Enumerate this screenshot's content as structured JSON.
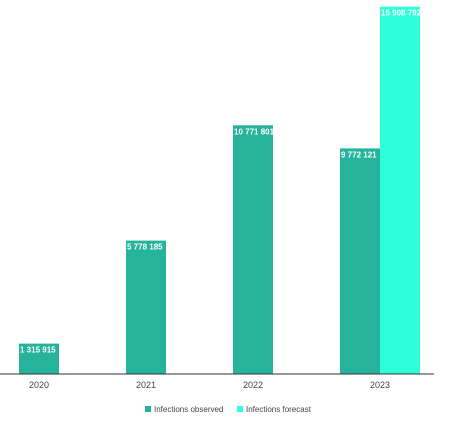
{
  "chart_data": {
    "type": "bar",
    "categories": [
      "2020",
      "2021",
      "2022",
      "2023"
    ],
    "series": [
      {
        "name": "Infections observed",
        "color": "#26b39c",
        "values": [
          1315915,
          5778185,
          10771801,
          9772121
        ],
        "labels": [
          "1 315 915",
          "5 778 185",
          "10 771 801",
          "9 772 121"
        ]
      },
      {
        "name": "Infections forecast",
        "color": "#2effdb",
        "values": [
          null,
          null,
          null,
          15908792
        ],
        "labels": [
          null,
          null,
          null,
          "15 908 792"
        ]
      }
    ],
    "title": "",
    "xlabel": "",
    "ylabel": "",
    "ylim": [
      0,
      16200000
    ],
    "grid": false,
    "y_axis_visible": false,
    "legend": "bottom-center"
  }
}
